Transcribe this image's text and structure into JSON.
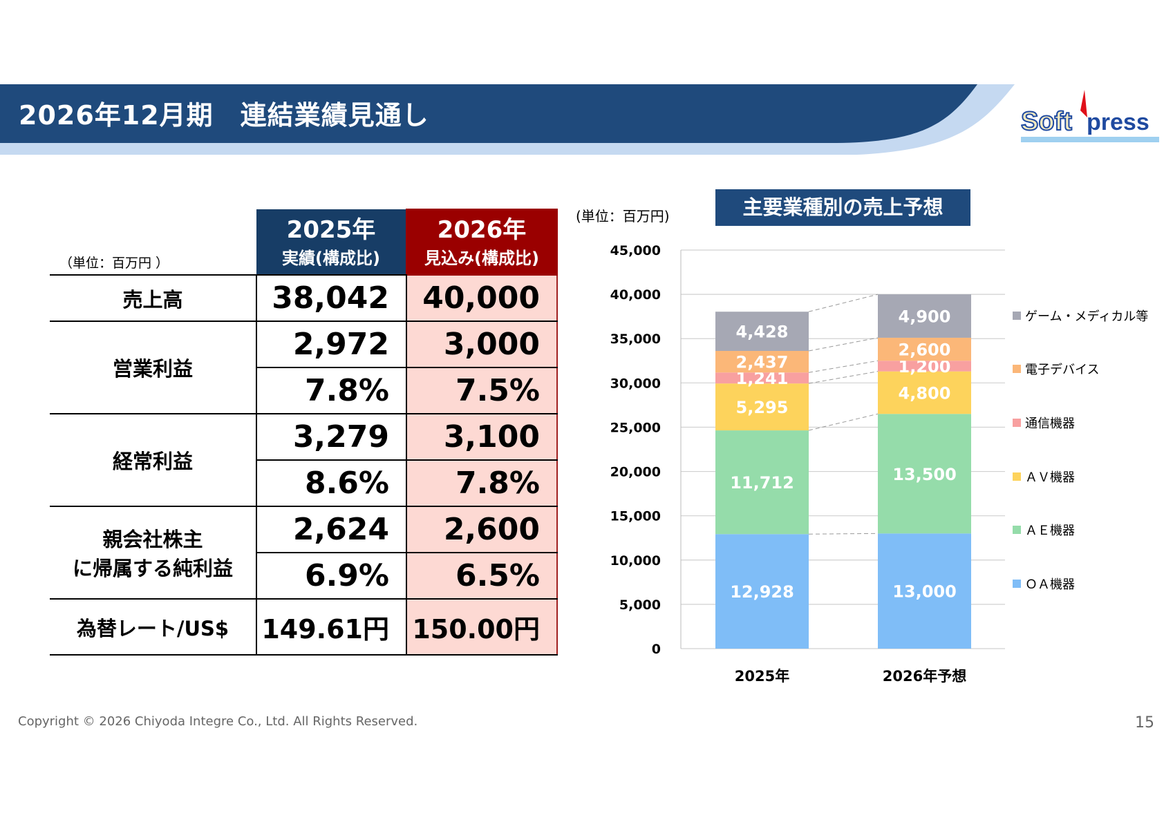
{
  "header": {
    "title": "2026年12月期　連結業績見通し",
    "logo_text": "Soft press"
  },
  "table": {
    "unit": "（単位：百万円 ）",
    "columns": [
      {
        "year": "2025年",
        "sub": "実績(構成比)"
      },
      {
        "year": "2026年",
        "sub": "見込み(構成比)"
      }
    ],
    "rows": [
      {
        "label": "売上高",
        "values": [
          [
            "38,042",
            "40,000"
          ]
        ]
      },
      {
        "label": "営業利益",
        "values": [
          [
            "2,972",
            "3,000"
          ],
          [
            "7.8%",
            "7.5%"
          ]
        ]
      },
      {
        "label": "経常利益",
        "values": [
          [
            "3,279",
            "3,100"
          ],
          [
            "8.6%",
            "7.8%"
          ]
        ]
      },
      {
        "label": "親会社株主\nに帰属する純利益",
        "values": [
          [
            "2,624",
            "2,600"
          ],
          [
            "6.9%",
            "6.5%"
          ]
        ]
      },
      {
        "label": "為替レート/US$",
        "values": [
          [
            "149.61円",
            "150.00円"
          ]
        ]
      }
    ]
  },
  "chart_data": {
    "type": "bar",
    "stacked": true,
    "title": "主要業種別の売上予想",
    "unit": "(単位：百万円)",
    "categories": [
      "2025年",
      "2026年予想"
    ],
    "ylim": [
      0,
      45000
    ],
    "yticks": [
      "0",
      "5,000",
      "10,000",
      "15,000",
      "20,000",
      "25,000",
      "30,000",
      "35,000",
      "40,000",
      "45,000"
    ],
    "grid": true,
    "legend_position": "right",
    "series": [
      {
        "name": "ＯＡ機器",
        "color": "#7fbdf7",
        "values": [
          12928,
          13000
        ],
        "labels": [
          "12,928",
          "13,000"
        ]
      },
      {
        "name": "ＡＥ機器",
        "color": "#95dcaa",
        "values": [
          11712,
          13500
        ],
        "labels": [
          "11,712",
          "13,500"
        ]
      },
      {
        "name": "ＡＶ機器",
        "color": "#fdd35c",
        "values": [
          5295,
          4800
        ],
        "labels": [
          "5,295",
          "4,800"
        ]
      },
      {
        "name": "通信機器",
        "color": "#f8a0a0",
        "values": [
          1241,
          1200
        ],
        "labels": [
          "1,241",
          "1,200"
        ]
      },
      {
        "name": "電子デバイス",
        "color": "#fbb778",
        "values": [
          2437,
          2600
        ],
        "labels": [
          "2,437",
          "2,600"
        ]
      },
      {
        "name": "ゲーム・メディカル等",
        "color": "#a6a8b4",
        "values": [
          4428,
          4900
        ],
        "labels": [
          "4,428",
          "4,900"
        ]
      }
    ]
  },
  "footer": {
    "copyright": "Copyright © 2026 Chiyoda Integre Co., Ltd. All Rights Reserved.",
    "page": "15"
  }
}
